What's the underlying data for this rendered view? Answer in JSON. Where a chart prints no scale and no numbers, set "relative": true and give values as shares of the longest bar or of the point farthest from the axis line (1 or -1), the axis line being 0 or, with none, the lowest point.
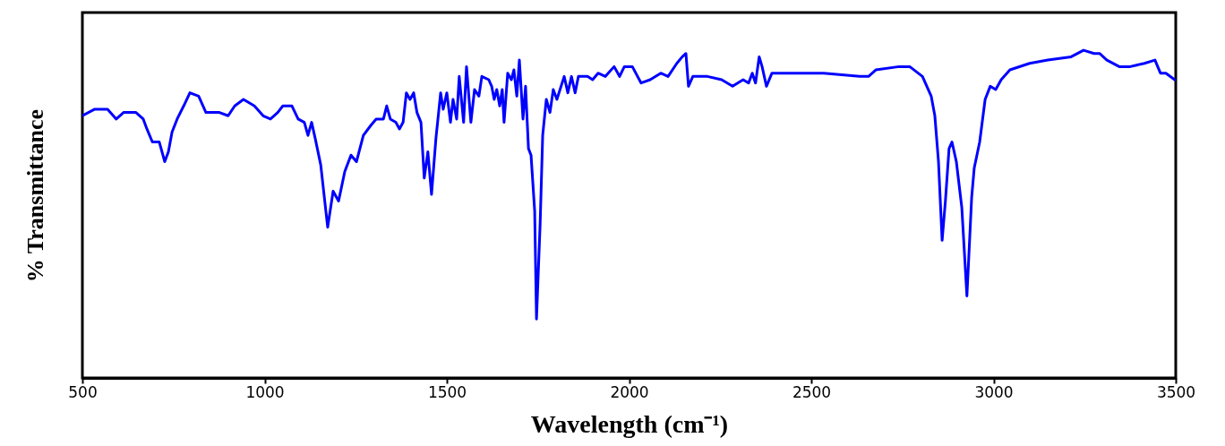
{
  "chart_data": {
    "type": "line",
    "xlabel": "Wavelength (cm⁻¹)",
    "ylabel": "% Transmittance",
    "relative": true,
    "grid": false,
    "color": "#0000ff",
    "xlim": [
      500,
      3500
    ],
    "xticks": [
      500,
      1000,
      1500,
      2000,
      2500,
      3000,
      3500
    ],
    "x": [
      500,
      534,
      569,
      593,
      613,
      647,
      667,
      677,
      692,
      711,
      726,
      736,
      746,
      760,
      778,
      795,
      819,
      839,
      876,
      900,
      918,
      942,
      972,
      996,
      1016,
      1036,
      1050,
      1075,
      1092,
      1109,
      1119,
      1129,
      1139,
      1154,
      1173,
      1188,
      1203,
      1220,
      1237,
      1252,
      1271,
      1291,
      1306,
      1326,
      1335,
      1345,
      1360,
      1370,
      1380,
      1389,
      1399,
      1409,
      1418,
      1429,
      1438,
      1448,
      1458,
      1470,
      1483,
      1490,
      1500,
      1510,
      1517,
      1527,
      1534,
      1546,
      1554,
      1566,
      1576,
      1588,
      1596,
      1615,
      1623,
      1630,
      1637,
      1645,
      1652,
      1657,
      1667,
      1677,
      1684,
      1692,
      1699,
      1709,
      1716,
      1724,
      1731,
      1741,
      1746,
      1756,
      1763,
      1773,
      1783,
      1792,
      1802,
      1822,
      1832,
      1842,
      1852,
      1861,
      1886,
      1900,
      1915,
      1935,
      1959,
      1974,
      1987,
      2009,
      2033,
      2058,
      2087,
      2107,
      2131,
      2146,
      2156,
      2163,
      2175,
      2215,
      2254,
      2284,
      2313,
      2328,
      2338,
      2347,
      2357,
      2365,
      2377,
      2392,
      2436,
      2534,
      2633,
      2657,
      2677,
      2741,
      2770,
      2805,
      2829,
      2839,
      2849,
      2859,
      2868,
      2878,
      2886,
      2898,
      2913,
      2927,
      2940,
      2947,
      2962,
      2977,
      2991,
      3006,
      3021,
      3045,
      3099,
      3149,
      3213,
      3247,
      3276,
      3291,
      3311,
      3345,
      3375,
      3414,
      3443,
      3458,
      3473,
      3497
    ],
    "values": [
      0.8,
      0.82,
      0.82,
      0.79,
      0.81,
      0.81,
      0.79,
      0.76,
      0.72,
      0.72,
      0.66,
      0.69,
      0.75,
      0.79,
      0.83,
      0.87,
      0.86,
      0.81,
      0.81,
      0.8,
      0.83,
      0.85,
      0.83,
      0.8,
      0.79,
      0.81,
      0.83,
      0.83,
      0.79,
      0.78,
      0.74,
      0.78,
      0.73,
      0.65,
      0.46,
      0.57,
      0.54,
      0.63,
      0.68,
      0.66,
      0.74,
      0.77,
      0.79,
      0.79,
      0.83,
      0.79,
      0.78,
      0.76,
      0.78,
      0.87,
      0.85,
      0.87,
      0.81,
      0.78,
      0.61,
      0.69,
      0.56,
      0.73,
      0.87,
      0.82,
      0.87,
      0.78,
      0.85,
      0.79,
      0.92,
      0.78,
      0.95,
      0.78,
      0.88,
      0.86,
      0.92,
      0.91,
      0.89,
      0.85,
      0.88,
      0.83,
      0.88,
      0.78,
      0.93,
      0.91,
      0.94,
      0.86,
      0.97,
      0.79,
      0.89,
      0.7,
      0.68,
      0.51,
      0.18,
      0.47,
      0.74,
      0.85,
      0.81,
      0.88,
      0.85,
      0.92,
      0.87,
      0.92,
      0.87,
      0.92,
      0.92,
      0.91,
      0.93,
      0.92,
      0.95,
      0.92,
      0.95,
      0.95,
      0.9,
      0.91,
      0.93,
      0.92,
      0.96,
      0.98,
      0.99,
      0.89,
      0.92,
      0.92,
      0.91,
      0.89,
      0.91,
      0.9,
      0.93,
      0.9,
      0.98,
      0.95,
      0.89,
      0.93,
      0.93,
      0.93,
      0.92,
      0.92,
      0.94,
      0.95,
      0.95,
      0.92,
      0.86,
      0.8,
      0.66,
      0.42,
      0.54,
      0.7,
      0.72,
      0.66,
      0.52,
      0.25,
      0.55,
      0.64,
      0.72,
      0.85,
      0.89,
      0.88,
      0.91,
      0.94,
      0.96,
      0.97,
      0.98,
      1.0,
      0.99,
      0.99,
      0.97,
      0.95,
      0.95,
      0.96,
      0.97,
      0.93,
      0.93,
      0.91
    ]
  }
}
